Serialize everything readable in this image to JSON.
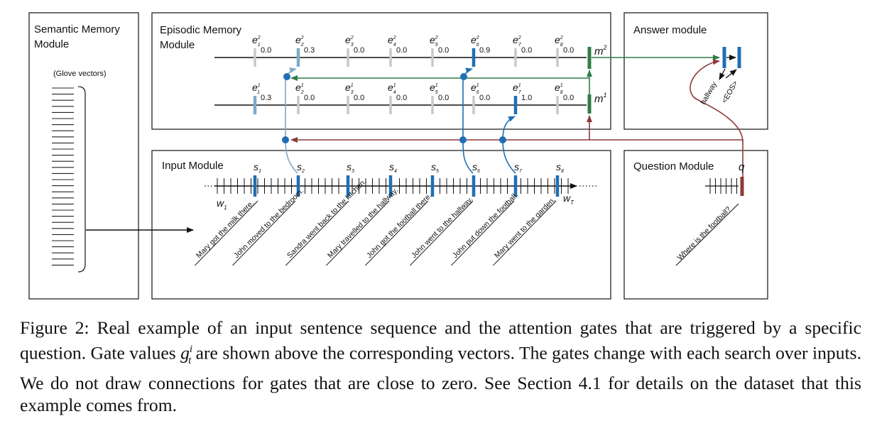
{
  "modules": {
    "semantic_title_1": "Semantic Memory",
    "semantic_title_2": "Module",
    "glove": "(Glove vectors)",
    "episodic_title_1": "Episodic Memory",
    "episodic_title_2": "Module",
    "answer_title": "Answer module",
    "input_title": "Input Module",
    "question_title": "Question Module"
  },
  "episodic": {
    "pass2_gates": [
      "0.0",
      "0.3",
      "0.0",
      "0.0",
      "0.0",
      "0.9",
      "0.0",
      "0.0"
    ],
    "pass1_gates": [
      "0.3",
      "0.0",
      "0.0",
      "0.0",
      "0.0",
      "0.0",
      "1.0",
      "0.0"
    ],
    "pass2_labels": [
      "e",
      "e",
      "e",
      "e",
      "e",
      "e",
      "e",
      "e"
    ],
    "pass1_labels": [
      "e",
      "e",
      "e",
      "e",
      "e",
      "e",
      "e",
      "e"
    ],
    "pass2_sup": "2",
    "pass1_sup": "1",
    "subs": [
      "1",
      "2",
      "3",
      "4",
      "5",
      "6",
      "7",
      "8"
    ],
    "m2": "m",
    "m2_sup": "2",
    "m1": "m",
    "m1_sup": "1"
  },
  "input": {
    "s_label": "s",
    "s_subs": [
      "1",
      "2",
      "3",
      "4",
      "5",
      "6",
      "7",
      "8"
    ],
    "w1": "w",
    "w1_sub": "1",
    "wT": "w",
    "wT_sub": "T",
    "sentences": [
      "Mary got the milk there.",
      "John moved to the bedroom.",
      "Sandra went back to the kitchen.",
      "Mary travelled to the hallway.",
      "John got the football there.",
      "John went to the hallway.",
      "John put down the football.",
      "Mary went to the garden."
    ]
  },
  "question": {
    "q_label": "q",
    "text": "Where is the football?"
  },
  "answer": {
    "words": [
      "hallway",
      "<EOS>"
    ]
  },
  "colors": {
    "blue": "#1f6fb4",
    "light_blue": "#7fa9c6",
    "green": "#2f7d46",
    "red": "#8b3a3a",
    "gray": "#c8c8c8"
  },
  "caption": {
    "prefix": "Figure 2: Real example of an input sentence sequence and the attention gates that are triggered by a specific question. Gate values ",
    "g": "g",
    "g_sup": "i",
    "g_sub": "t",
    "suffix": " are shown above the corresponding vectors. The gates change with each search over inputs. We do not draw connections for gates that are close to zero. See Section 4.1 for details on the dataset that this example comes from."
  }
}
